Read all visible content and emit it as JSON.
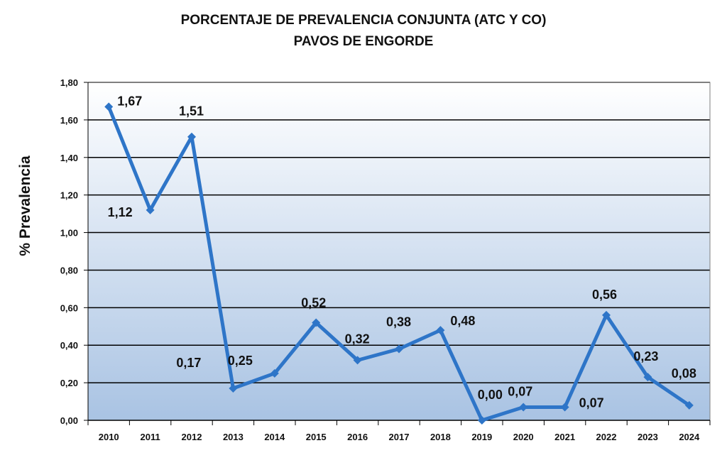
{
  "chart_data": {
    "type": "line",
    "title": "PORCENTAJE DE PREVALENCIA CONJUNTA (ATC Y CO)",
    "subtitle": "PAVOS DE ENGORDE",
    "xlabel": "",
    "ylabel": "% Prevalencia",
    "ylim": [
      0,
      1.8
    ],
    "yticks": [
      "0,00",
      "0,20",
      "0,40",
      "0,60",
      "0,80",
      "1,00",
      "1,20",
      "1,40",
      "1,60",
      "1,80"
    ],
    "ytick_values": [
      0,
      0.2,
      0.4,
      0.6,
      0.8,
      1.0,
      1.2,
      1.4,
      1.6,
      1.8
    ],
    "grid": true,
    "categories": [
      "2010",
      "2011",
      "2012",
      "2013",
      "2014",
      "2015",
      "2016",
      "2017",
      "2018",
      "2019",
      "2020",
      "2021",
      "2022",
      "2023",
      "2024"
    ],
    "series": [
      {
        "name": "% Prevalencia",
        "color": "#2e75c8",
        "values": [
          1.67,
          1.12,
          1.51,
          0.17,
          0.25,
          0.52,
          0.32,
          0.38,
          0.48,
          0.0,
          0.07,
          0.07,
          0.56,
          0.23,
          0.08
        ],
        "labels": [
          "1,67",
          "1,12",
          "1,51",
          "0,17",
          "0,25",
          "0,52",
          "0,32",
          "0,38",
          "0,48",
          "0,00",
          "0,07",
          "0,07",
          "0,56",
          "0,23",
          "0,08"
        ]
      }
    ]
  }
}
